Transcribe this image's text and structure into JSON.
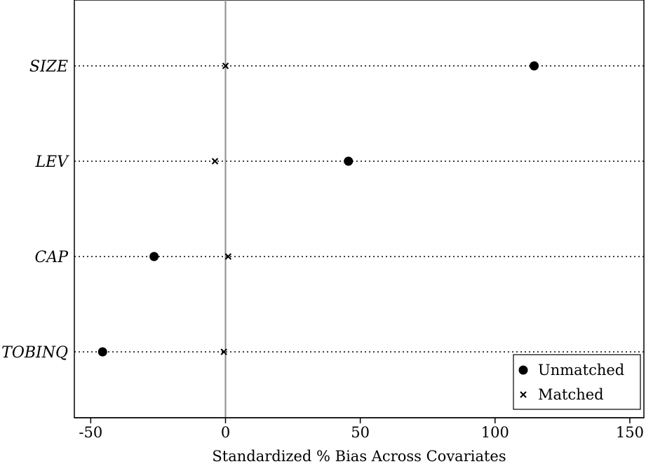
{
  "chart_data": {
    "type": "scatter",
    "categories": [
      "SIZE",
      "LEV",
      "CAP",
      "TOBINQ"
    ],
    "series": [
      {
        "name": "Unmatched",
        "marker": "dot",
        "values": [
          114.5,
          45.6,
          -26.5,
          -45.6
        ]
      },
      {
        "name": "Matched",
        "marker": "x",
        "values": [
          0.0,
          -3.9,
          1.0,
          -0.6
        ]
      }
    ],
    "xlabel": "Standardized % Bias Across Covariates",
    "ylabel": "",
    "xlim": [
      -56,
      156
    ],
    "xticks": [
      -50,
      0,
      50,
      100,
      150
    ],
    "reference_line_x": 0,
    "grid": "dotted horizontal lines per category",
    "legend_position": "bottom-right",
    "colors": {
      "marker": "#000000",
      "reference_line": "#8c8c8c"
    }
  }
}
